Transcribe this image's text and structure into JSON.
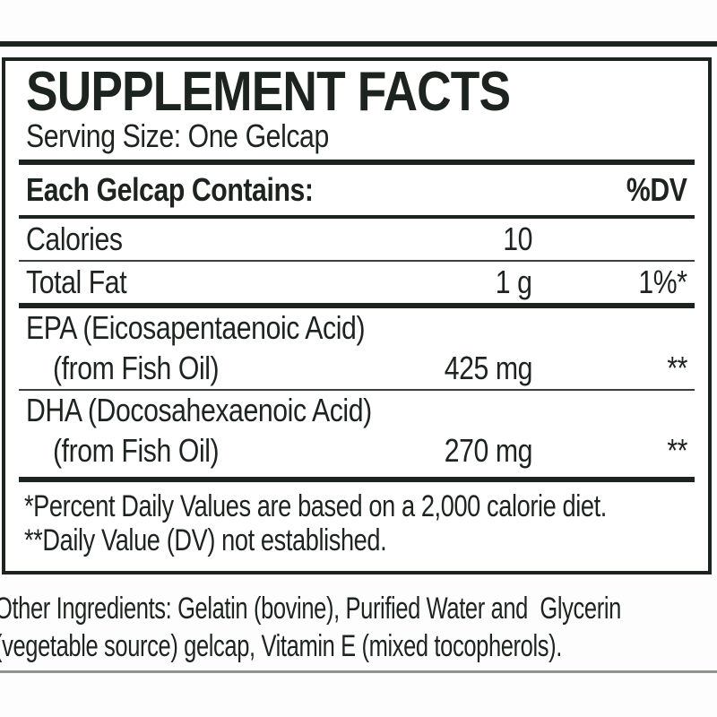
{
  "label": {
    "title": "SUPPLEMENT FACTS",
    "serving_size": "Serving Size: One Gelcap",
    "header": {
      "left": "Each Gelcap Contains:",
      "right": "%DV"
    },
    "rows": [
      {
        "name": "Calories",
        "amount": "10",
        "dv": ""
      },
      {
        "name": "Total Fat",
        "amount": "1 g",
        "dv": "1%*"
      },
      {
        "name": "EPA (Eicosapentaenoic Acid)",
        "source": "(from Fish Oil)",
        "amount": "425 mg",
        "dv": "**"
      },
      {
        "name": "DHA (Docosahexaenoic Acid)",
        "source": "(from Fish Oil)",
        "amount": "270 mg",
        "dv": "**"
      }
    ],
    "footnotes": [
      "*Percent Daily Values are based on a 2,000 calorie diet.",
      "**Daily Value (DV) not established."
    ],
    "other_ingredients": {
      "line1": "Other Ingredients: Gelatin (bovine), Purified Water and  Glycerin",
      "line2": "(vegetable source) gelcap, Vitamin E (mixed tocopherols)."
    },
    "colors": {
      "ink": "#1d2420",
      "panel_background": "#ffffff"
    }
  }
}
